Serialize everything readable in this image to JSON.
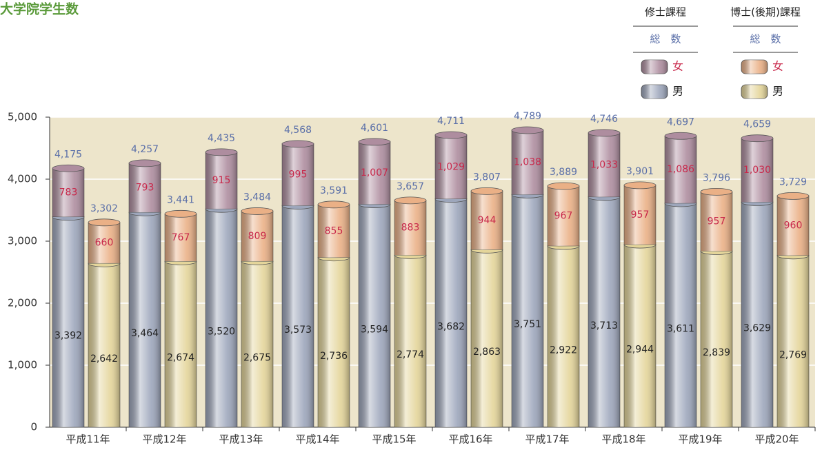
{
  "chart_data": {
    "type": "bar",
    "title": "大学院学生数",
    "categories": [
      "平成11年",
      "平成12年",
      "平成13年",
      "平成14年",
      "平成15年",
      "平成16年",
      "平成17年",
      "平成18年",
      "平成19年",
      "平成20年"
    ],
    "ylim": [
      0,
      5000
    ],
    "yticks": [
      0,
      {
        "value": 1000,
        "label": "1,000"
      },
      {
        "value": 2000,
        "label": "2,000"
      },
      {
        "value": 3000,
        "label": "3,000"
      },
      {
        "value": 4000,
        "label": "4,000"
      },
      {
        "value": 5000,
        "label": "5,000"
      }
    ],
    "grid": true,
    "groups": [
      {
        "name": "修士課程",
        "total_label": "総　数",
        "totals": [
          4175,
          4257,
          4435,
          4568,
          4601,
          4711,
          4789,
          4746,
          4697,
          4659
        ],
        "total_labels": [
          "4,175",
          "4,257",
          "4,435",
          "4,568",
          "4,601",
          "4,711",
          "4,789",
          "4,746",
          "4,697",
          "4,659"
        ],
        "series": [
          {
            "name": "男",
            "color": "#9da6bb",
            "values": [
              3392,
              3464,
              3520,
              3573,
              3594,
              3682,
              3751,
              3713,
              3611,
              3629
            ],
            "value_labels": [
              "3,392",
              "3,464",
              "3,520",
              "3,573",
              "3,594",
              "3,682",
              "3,751",
              "3,713",
              "3,611",
              "3,629"
            ]
          },
          {
            "name": "女",
            "color": "#ae8d9f",
            "values": [
              783,
              793,
              915,
              995,
              1007,
              1029,
              1038,
              1033,
              1086,
              1030
            ],
            "value_labels": [
              "783",
              "793",
              "915",
              "995",
              "1,007",
              "1,029",
              "1,038",
              "1,033",
              "1,086",
              "1,030"
            ]
          }
        ]
      },
      {
        "name": "博士(後期)課程",
        "total_label": "総　数",
        "totals": [
          3302,
          3441,
          3484,
          3591,
          3657,
          3807,
          3889,
          3901,
          3796,
          3729
        ],
        "total_labels": [
          "3,302",
          "3,441",
          "3,484",
          "3,591",
          "3,657",
          "3,807",
          "3,889",
          "3,901",
          "3,796",
          "3,729"
        ],
        "series": [
          {
            "name": "男",
            "color": "#e4d59a",
            "values": [
              2642,
              2674,
              2675,
              2736,
              2774,
              2863,
              2922,
              2944,
              2839,
              2769
            ],
            "value_labels": [
              "2,642",
              "2,674",
              "2,675",
              "2,736",
              "2,774",
              "2,863",
              "2,922",
              "2,944",
              "2,839",
              "2,769"
            ]
          },
          {
            "name": "女",
            "color": "#eab086",
            "values": [
              660,
              767,
              809,
              855,
              883,
              944,
              967,
              957,
              957,
              960
            ],
            "value_labels": [
              "660",
              "767",
              "809",
              "855",
              "883",
              "944",
              "967",
              "957",
              "957",
              "960"
            ]
          }
        ]
      }
    ]
  }
}
